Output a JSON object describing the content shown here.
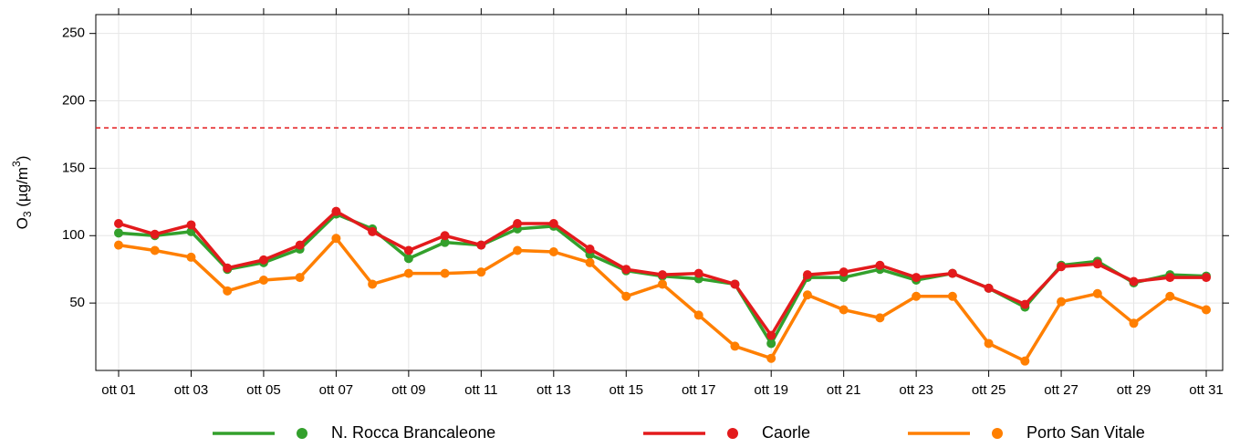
{
  "chart_data": {
    "type": "line",
    "ylabel": [
      "O",
      "3",
      " (µg/m",
      "3",
      ")"
    ],
    "categories": [
      "ott 01",
      null,
      "ott 03",
      null,
      "ott 05",
      null,
      "ott 07",
      null,
      "ott 09",
      null,
      "ott 11",
      null,
      "ott 13",
      null,
      "ott 15",
      null,
      "ott 17",
      null,
      "ott 19",
      null,
      "ott 21",
      null,
      "ott 23",
      null,
      "ott 25",
      null,
      "ott 27",
      null,
      "ott 29",
      null,
      "ott 31"
    ],
    "series": [
      {
        "name": "N. Rocca Brancaleone",
        "color": "#33a02c",
        "values": [
          102,
          100,
          103,
          75,
          80,
          90,
          116,
          105,
          83,
          95,
          93,
          105,
          107,
          86,
          74,
          70,
          68,
          64,
          20,
          69,
          69,
          75,
          67,
          72,
          61,
          47,
          78,
          81,
          65,
          71,
          70
        ]
      },
      {
        "name": "Caorle",
        "color": "#e31a1c",
        "values": [
          109,
          101,
          108,
          76,
          82,
          93,
          118,
          103,
          89,
          100,
          93,
          109,
          109,
          90,
          75,
          71,
          72,
          64,
          26,
          71,
          73,
          78,
          69,
          72,
          61,
          49,
          77,
          79,
          66,
          69,
          69
        ]
      },
      {
        "name": "Porto San Vitale",
        "color": "#ff7f00",
        "values": [
          93,
          89,
          84,
          59,
          67,
          69,
          98,
          64,
          72,
          72,
          73,
          89,
          88,
          80,
          55,
          64,
          41,
          18,
          9,
          56,
          45,
          39,
          55,
          55,
          20,
          7,
          51,
          57,
          35,
          55,
          45
        ]
      }
    ],
    "threshold": 180,
    "threshold_color": "#e31a1c",
    "ylim": [
      0,
      264
    ],
    "yticks": [
      50,
      100,
      150,
      200,
      250
    ],
    "grid": true,
    "legend": "bottom"
  }
}
